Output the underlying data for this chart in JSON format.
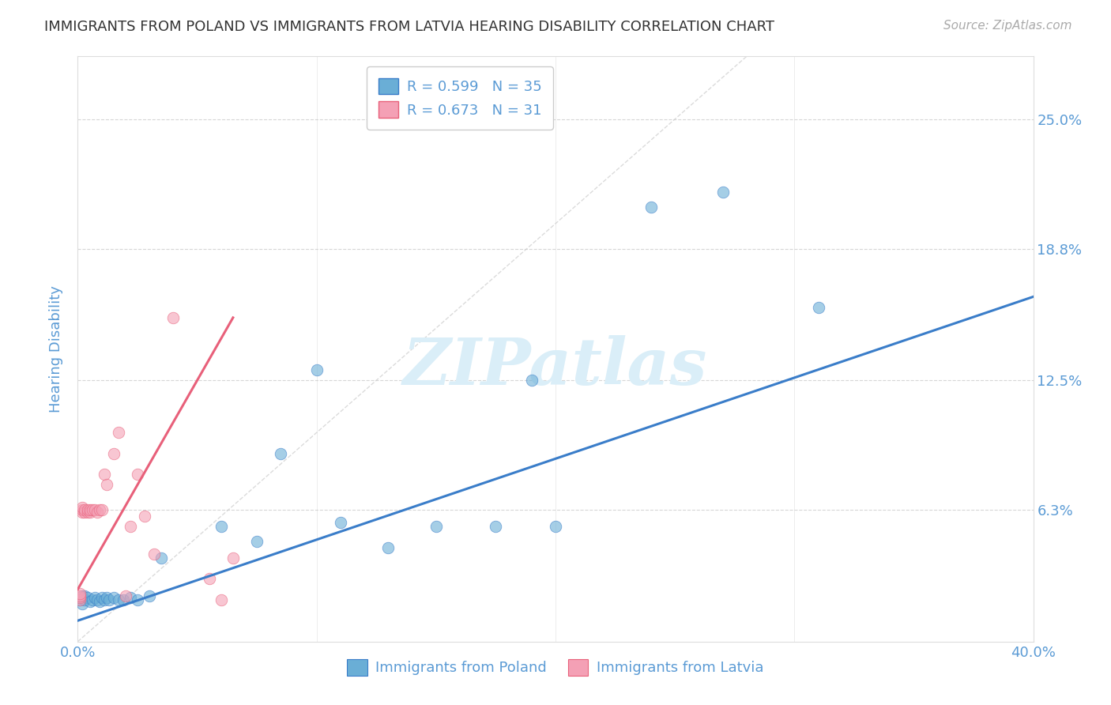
{
  "title": "IMMIGRANTS FROM POLAND VS IMMIGRANTS FROM LATVIA HEARING DISABILITY CORRELATION CHART",
  "source": "Source: ZipAtlas.com",
  "xlabel_poland": "Immigrants from Poland",
  "xlabel_latvia": "Immigrants from Latvia",
  "ylabel": "Hearing Disability",
  "xlim": [
    0.0,
    0.4
  ],
  "ylim": [
    0.0,
    0.28
  ],
  "ytick_labels_right": [
    "25.0%",
    "18.8%",
    "12.5%",
    "6.3%"
  ],
  "ytick_vals_right": [
    0.25,
    0.188,
    0.125,
    0.063
  ],
  "r_poland": 0.599,
  "n_poland": 35,
  "r_latvia": 0.673,
  "n_latvia": 31,
  "color_poland": "#6aaed6",
  "color_latvia": "#f4a0b5",
  "line_color_poland": "#3a7dc9",
  "line_color_latvia": "#e8607a",
  "diagonal_color": "#cccccc",
  "grid_color": "#cccccc",
  "title_color": "#333333",
  "axis_label_color": "#5b9bd5",
  "bg_color": "#ffffff",
  "watermark_text": "ZIPatlas",
  "watermark_color": "#daeef8",
  "poland_scatter_x": [
    0.001,
    0.002,
    0.002,
    0.003,
    0.003,
    0.004,
    0.005,
    0.006,
    0.007,
    0.008,
    0.009,
    0.01,
    0.011,
    0.012,
    0.013,
    0.015,
    0.017,
    0.019,
    0.022,
    0.025,
    0.03,
    0.035,
    0.06,
    0.075,
    0.085,
    0.1,
    0.11,
    0.13,
    0.15,
    0.175,
    0.19,
    0.2,
    0.24,
    0.27,
    0.31
  ],
  "poland_scatter_y": [
    0.02,
    0.022,
    0.018,
    0.02,
    0.022,
    0.021,
    0.019,
    0.02,
    0.021,
    0.02,
    0.019,
    0.021,
    0.02,
    0.021,
    0.02,
    0.021,
    0.02,
    0.02,
    0.021,
    0.02,
    0.022,
    0.04,
    0.055,
    0.048,
    0.09,
    0.13,
    0.057,
    0.045,
    0.055,
    0.055,
    0.125,
    0.055,
    0.208,
    0.215,
    0.16
  ],
  "latvia_scatter_x": [
    0.001,
    0.001,
    0.001,
    0.001,
    0.002,
    0.002,
    0.002,
    0.003,
    0.003,
    0.004,
    0.004,
    0.005,
    0.005,
    0.006,
    0.007,
    0.008,
    0.009,
    0.01,
    0.011,
    0.012,
    0.015,
    0.017,
    0.02,
    0.022,
    0.025,
    0.028,
    0.032,
    0.04,
    0.055,
    0.06,
    0.065
  ],
  "latvia_scatter_y": [
    0.02,
    0.021,
    0.022,
    0.023,
    0.062,
    0.063,
    0.064,
    0.062,
    0.063,
    0.062,
    0.063,
    0.062,
    0.063,
    0.063,
    0.063,
    0.062,
    0.063,
    0.063,
    0.08,
    0.075,
    0.09,
    0.1,
    0.022,
    0.055,
    0.08,
    0.06,
    0.042,
    0.155,
    0.03,
    0.02,
    0.04
  ],
  "poland_line_x": [
    0.0,
    0.4
  ],
  "poland_line_y": [
    0.01,
    0.165
  ],
  "latvia_line_x": [
    0.0,
    0.065
  ],
  "latvia_line_y": [
    0.025,
    0.155
  ]
}
